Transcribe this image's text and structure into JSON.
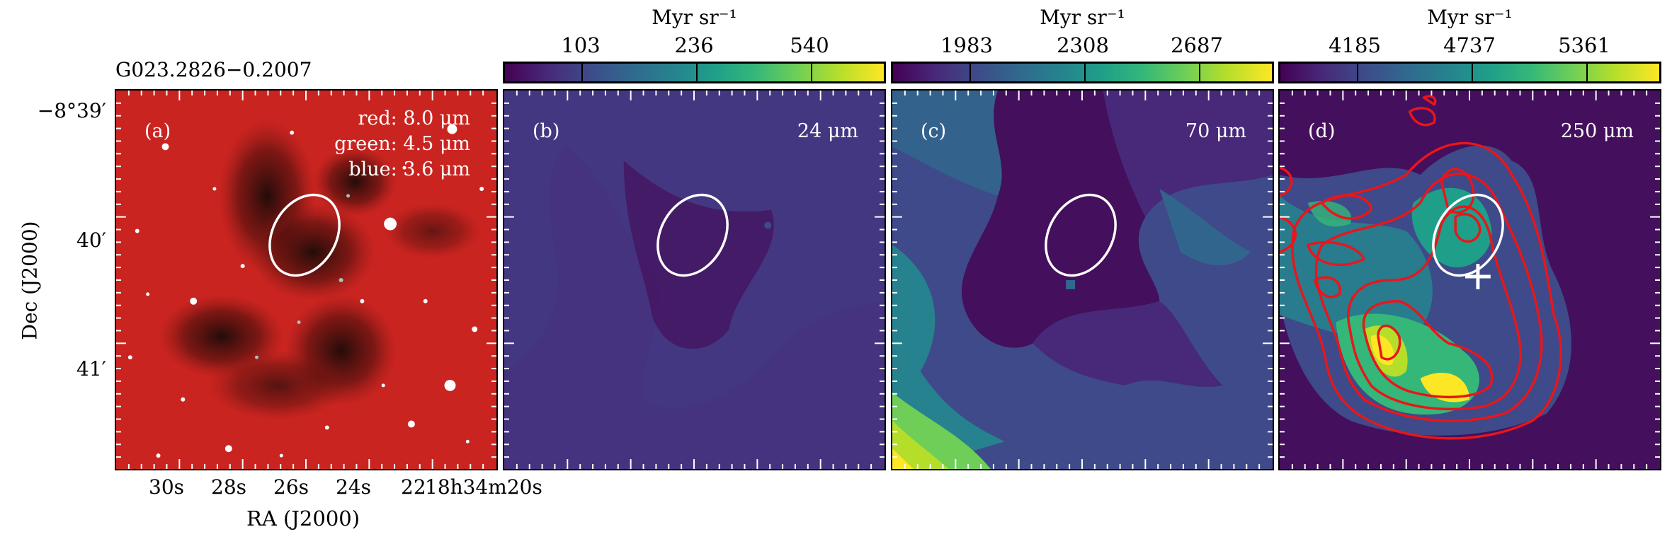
{
  "source_name": "G023.2826−0.2007",
  "axes": {
    "xlabel": "RA (J2000)",
    "ylabel": "Dec (J2000)",
    "y_ticks": [
      "−8°39′",
      "40′",
      "41′"
    ],
    "x_ticks": [
      "30s",
      "28s",
      "26s",
      "24s",
      "22"
    ],
    "x_last_tick": "18h34m20s"
  },
  "panels": [
    {
      "label": "(a)",
      "legend": [
        "red: 8.0 μm",
        "green: 4.5 μm",
        "blue: 3.6 μm"
      ]
    },
    {
      "label": "(b)",
      "band": "24 μm"
    },
    {
      "label": "(c)",
      "band": "70 μm"
    },
    {
      "label": "(d)",
      "band": "250 μm"
    }
  ],
  "colorbars": [
    {
      "unit": "Myr sr⁻¹",
      "ticks": [
        "103",
        "236",
        "540"
      ]
    },
    {
      "unit": "Myr sr⁻¹",
      "ticks": [
        "1983",
        "2308",
        "2687"
      ]
    },
    {
      "unit": "Myr sr⁻¹",
      "ticks": [
        "4185",
        "4737",
        "5361"
      ]
    }
  ],
  "colors": {
    "ellipse": "#ffffff",
    "contours": "#e8161b",
    "marker": "#ffffff",
    "colormap": "viridis",
    "rgb_background": "#c41d1a"
  },
  "icons": [
    "white-plus-marker",
    "white-ellipse-aperture"
  ]
}
